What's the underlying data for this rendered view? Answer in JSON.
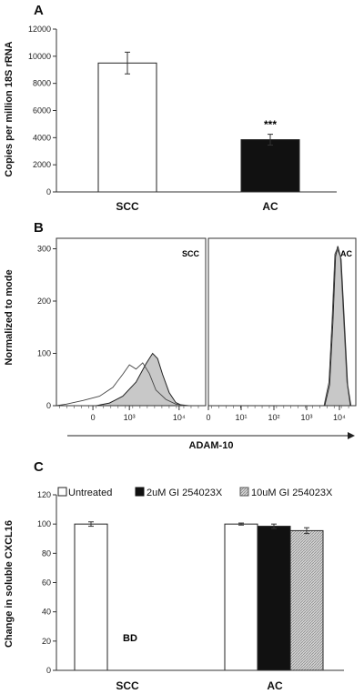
{
  "chart_data": [
    {
      "panel": "A",
      "type": "bar",
      "ylabel": "Copies per million 18S rRNA",
      "ylim": [
        0,
        12000
      ],
      "yticks": [
        "0",
        "2000",
        "4000",
        "6000",
        "8000",
        "10000",
        "12000"
      ],
      "categories": [
        "SCC",
        "AC"
      ],
      "values": [
        9500,
        3850
      ],
      "errors": [
        800,
        400
      ],
      "fills": [
        "#ffffff",
        "#111111"
      ],
      "annotations": [
        {
          "category": "AC",
          "text": "***"
        }
      ]
    },
    {
      "panel": "B",
      "type": "area",
      "ylabel": "Normalized to mode",
      "xlabel": "ADAM-10",
      "ylim": [
        0,
        300
      ],
      "yticks": [
        "0",
        "100",
        "200",
        "300"
      ],
      "subpanels": [
        {
          "label": "SCC",
          "xticks": [
            "0",
            "10³",
            "10⁴"
          ],
          "filled": [
            [
              0.0,
              0
            ],
            [
              1.2,
              0
            ],
            [
              1.6,
              5
            ],
            [
              2.0,
              18
            ],
            [
              2.4,
              45
            ],
            [
              2.7,
              80
            ],
            [
              2.9,
              100
            ],
            [
              3.05,
              90
            ],
            [
              3.2,
              60
            ],
            [
              3.4,
              25
            ],
            [
              3.6,
              6
            ],
            [
              3.8,
              0
            ],
            [
              4.5,
              0
            ]
          ],
          "outline": [
            [
              0.0,
              0
            ],
            [
              0.3,
              3
            ],
            [
              0.8,
              10
            ],
            [
              1.3,
              18
            ],
            [
              1.7,
              35
            ],
            [
              2.0,
              60
            ],
            [
              2.2,
              78
            ],
            [
              2.4,
              70
            ],
            [
              2.6,
              82
            ],
            [
              2.8,
              62
            ],
            [
              3.0,
              30
            ],
            [
              3.3,
              12
            ],
            [
              3.6,
              3
            ],
            [
              4.0,
              0
            ],
            [
              4.5,
              0
            ]
          ]
        },
        {
          "label": "AC",
          "xticks": [
            "0",
            "10¹",
            "10²",
            "10³",
            "10⁴"
          ],
          "filled": [
            [
              0.0,
              0
            ],
            [
              3.55,
              0
            ],
            [
              3.7,
              40
            ],
            [
              3.8,
              160
            ],
            [
              3.88,
              285
            ],
            [
              3.95,
              305
            ],
            [
              4.05,
              280
            ],
            [
              4.15,
              160
            ],
            [
              4.25,
              40
            ],
            [
              4.35,
              0
            ],
            [
              4.5,
              0
            ]
          ],
          "outline": [
            [
              0.0,
              0
            ],
            [
              3.53,
              0
            ],
            [
              3.68,
              45
            ],
            [
              3.78,
              170
            ],
            [
              3.86,
              290
            ],
            [
              3.93,
              300
            ],
            [
              4.03,
              285
            ],
            [
              4.13,
              165
            ],
            [
              4.23,
              45
            ],
            [
              4.33,
              0
            ],
            [
              4.5,
              0
            ]
          ]
        }
      ]
    },
    {
      "panel": "C",
      "type": "bar",
      "ylabel": "Change in soluble CXCL16",
      "ylim": [
        0,
        120
      ],
      "yticks": [
        "0",
        "20",
        "40",
        "60",
        "80",
        "100",
        "120"
      ],
      "categories": [
        "SCC",
        "AC"
      ],
      "series": [
        {
          "name": "Untreated",
          "values": [
            100,
            100
          ],
          "errors": [
            1.5,
            0.7
          ],
          "fill": "#ffffff"
        },
        {
          "name": "2uM GI 254023X",
          "values": [
            0,
            98.5
          ],
          "errors": [
            0,
            1.5
          ],
          "fill": "#111111"
        },
        {
          "name": "10uM GI 254023X",
          "values": [
            0,
            95.5
          ],
          "errors": [
            0,
            2.0
          ],
          "fill": "hatch"
        }
      ],
      "annotations": [
        {
          "category": "SCC",
          "text": "BD"
        }
      ]
    }
  ]
}
